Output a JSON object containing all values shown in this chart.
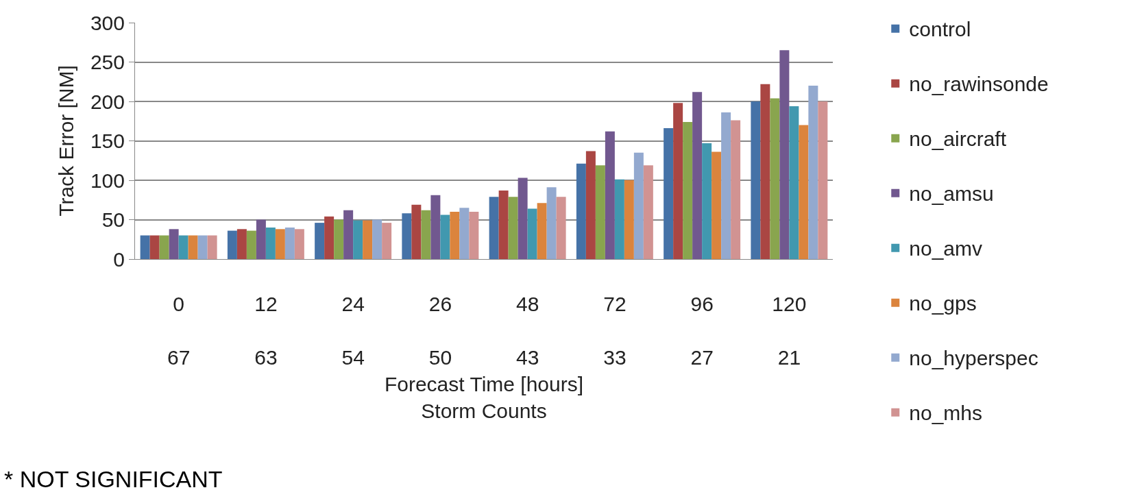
{
  "chart_data": {
    "type": "bar",
    "ylabel": "Track Error [NM]",
    "xlabel": "Forecast Time [hours]\nStorm Counts",
    "categories": [
      "0\n67",
      "12\n63",
      "24\n54",
      "26\n50",
      "48\n43",
      "72\n33",
      "96\n27",
      "120\n21"
    ],
    "series": [
      {
        "name": "control",
        "color": "#4572a7",
        "values": [
          30,
          36,
          46,
          58,
          79,
          121,
          166,
          200
        ]
      },
      {
        "name": "no_rawinsonde",
        "color": "#aa4643",
        "values": [
          30,
          38,
          54,
          69,
          87,
          137,
          198,
          222
        ]
      },
      {
        "name": "no_aircraft",
        "color": "#89a54e",
        "values": [
          30,
          36,
          50,
          62,
          79,
          119,
          174,
          204
        ]
      },
      {
        "name": "no_amsu",
        "color": "#71588f",
        "values": [
          38,
          50,
          62,
          81,
          103,
          162,
          212,
          265
        ]
      },
      {
        "name": "no_amv",
        "color": "#4198af",
        "values": [
          30,
          40,
          49,
          56,
          64,
          101,
          147,
          194
        ]
      },
      {
        "name": "no_gps",
        "color": "#db843d",
        "values": [
          30,
          38,
          49,
          60,
          71,
          100,
          136,
          170
        ]
      },
      {
        "name": "no_hyperspec",
        "color": "#93a9cf",
        "values": [
          30,
          40,
          50,
          65,
          91,
          135,
          186,
          220
        ]
      },
      {
        "name": "no_mhs",
        "color": "#d19392",
        "values": [
          30,
          38,
          46,
          60,
          79,
          119,
          176,
          200
        ]
      }
    ],
    "ylim": [
      0,
      300
    ],
    "yticks": [
      0,
      50,
      100,
      150,
      200,
      250,
      300
    ],
    "grid": "y",
    "legend": "right",
    "annotations": [
      "* NOT SIGNIFICANT"
    ]
  }
}
